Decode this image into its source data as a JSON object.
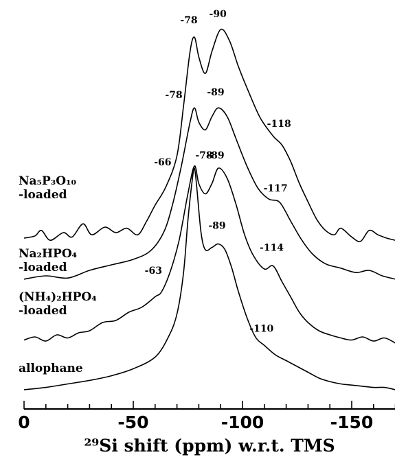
{
  "chart_data": {
    "type": "line",
    "xlabel": "²⁹Si shift (ppm) w.r.t. TMS",
    "xlim": [
      0,
      -170
    ],
    "x_reversed": true,
    "x_ticks": [
      0,
      -50,
      -100,
      -150
    ],
    "x_tick_labels": [
      "0",
      "-50",
      "-100",
      "-150"
    ],
    "y_axis": "none",
    "series": [
      {
        "name": "Na₅P₃O₁₀ -loaded",
        "label_lines": [
          "Na₅P₃O₁₀",
          "-loaded"
        ],
        "peak_labels": [
          "-66",
          "-78",
          "-90",
          "-118"
        ],
        "x": [
          0,
          -5,
          -8,
          -12,
          -18,
          -22,
          -27,
          -31,
          -37,
          -42,
          -47,
          -52,
          -56,
          -60,
          -65,
          -70,
          -73,
          -76,
          -78,
          -80,
          -83,
          -86,
          -90,
          -94,
          -98,
          -102,
          -108,
          -114,
          -118,
          -122,
          -126,
          -130,
          -134,
          -138,
          -142,
          -145,
          -150,
          -154,
          -158,
          -162,
          -166,
          -170
        ],
        "y": [
          0.05,
          0.07,
          0.12,
          0.03,
          0.1,
          0.06,
          0.18,
          0.08,
          0.15,
          0.1,
          0.14,
          0.08,
          0.2,
          0.35,
          0.52,
          0.8,
          1.25,
          1.75,
          1.88,
          1.7,
          1.55,
          1.75,
          1.95,
          1.85,
          1.62,
          1.42,
          1.15,
          0.98,
          0.9,
          0.75,
          0.55,
          0.38,
          0.22,
          0.12,
          0.08,
          0.14,
          0.06,
          0.02,
          0.12,
          0.08,
          0.05,
          0.03
        ]
      },
      {
        "name": "Na₂HPO₄ -loaded",
        "label_lines": [
          "Na₂HPO₄",
          "-loaded"
        ],
        "peak_labels": [
          "-78",
          "-89",
          "-117"
        ],
        "x": [
          0,
          -10,
          -20,
          -30,
          -40,
          -50,
          -58,
          -64,
          -68,
          -72,
          -76,
          -78,
          -80,
          -83,
          -86,
          -89,
          -93,
          -97,
          -102,
          -107,
          -112,
          -117,
          -122,
          -127,
          -132,
          -138,
          -145,
          -152,
          -158,
          -164,
          -170
        ],
        "y": [
          0.02,
          0.05,
          0.03,
          0.1,
          0.15,
          0.2,
          0.28,
          0.45,
          0.7,
          1.05,
          1.45,
          1.58,
          1.45,
          1.38,
          1.5,
          1.58,
          1.5,
          1.3,
          1.05,
          0.85,
          0.75,
          0.72,
          0.55,
          0.38,
          0.25,
          0.16,
          0.12,
          0.08,
          0.1,
          0.05,
          0.02
        ]
      },
      {
        "name": "(NH₄)₂HPO₄ -loaded",
        "label_lines": [
          "(NH₄)₂HPO₄",
          "-loaded"
        ],
        "peak_labels": [
          "-63",
          "-89",
          "-114"
        ],
        "x": [
          0,
          -5,
          -10,
          -15,
          -20,
          -25,
          -30,
          -36,
          -42,
          -48,
          -54,
          -60,
          -63,
          -67,
          -71,
          -75,
          -78,
          -80,
          -83,
          -86,
          -89,
          -93,
          -97,
          -101,
          -105,
          -110,
          -114,
          -118,
          -122,
          -126,
          -130,
          -135,
          -140,
          -145,
          -150,
          -155,
          -160,
          -165,
          -170
        ],
        "y": [
          0.03,
          0.06,
          0.02,
          0.08,
          0.05,
          0.1,
          0.12,
          0.2,
          0.22,
          0.3,
          0.35,
          0.45,
          0.5,
          0.7,
          1.0,
          1.45,
          1.72,
          1.55,
          1.45,
          1.55,
          1.7,
          1.6,
          1.35,
          1.05,
          0.85,
          0.72,
          0.75,
          0.6,
          0.45,
          0.3,
          0.2,
          0.12,
          0.08,
          0.05,
          0.03,
          0.06,
          0.02,
          0.05,
          0.0
        ]
      },
      {
        "name": "allophane",
        "label_lines": [
          "allophane"
        ],
        "peak_labels": [
          "-78",
          "-89",
          "-110"
        ],
        "x": [
          0,
          -10,
          -20,
          -30,
          -40,
          -50,
          -60,
          -66,
          -70,
          -73,
          -75,
          -77,
          -78,
          -79,
          -81,
          -83,
          -86,
          -89,
          -92,
          -95,
          -98,
          -102,
          -106,
          -110,
          -115,
          -120,
          -125,
          -130,
          -135,
          -140,
          -145,
          -150,
          -155,
          -160,
          -165,
          -170
        ],
        "y": [
          0.0,
          0.02,
          0.05,
          0.08,
          0.12,
          0.18,
          0.28,
          0.45,
          0.65,
          1.0,
          1.45,
          1.8,
          1.9,
          1.75,
          1.35,
          1.2,
          1.22,
          1.25,
          1.2,
          1.05,
          0.85,
          0.62,
          0.45,
          0.38,
          0.3,
          0.25,
          0.2,
          0.15,
          0.1,
          0.07,
          0.05,
          0.04,
          0.03,
          0.02,
          0.02,
          0.0
        ]
      }
    ]
  }
}
